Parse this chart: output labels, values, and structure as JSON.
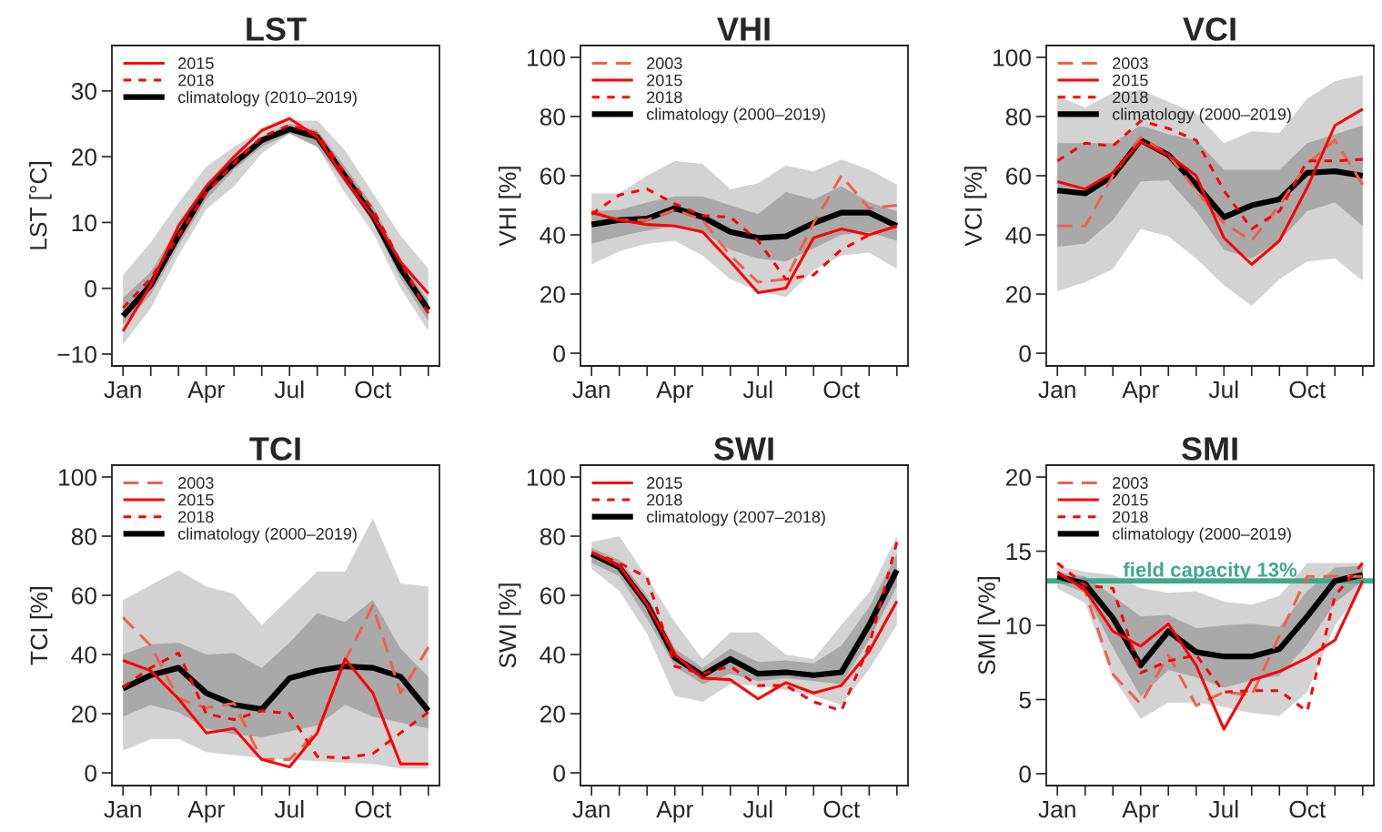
{
  "chart_data": [
    {
      "type": "line",
      "title": "LST",
      "ylabel": "LST [°C]",
      "categories": [
        "Jan",
        null,
        null,
        "Apr",
        null,
        null,
        "Jul",
        null,
        null,
        "Oct",
        null,
        null
      ],
      "ylim": [
        -11.8,
        36.9
      ],
      "yticks": [
        {
          "value": -10,
          "label": "−10"
        },
        0,
        10,
        20,
        30
      ],
      "legend": "top left",
      "grid": false,
      "series": [
        {
          "color": "#d3d3d3",
          "values": [
            null,
            null,
            null,
            null,
            null,
            null,
            null,
            null,
            null,
            null,
            null,
            null
          ],
          "lower": [
            -8.5,
            -3,
            5,
            12,
            15.5,
            20.5,
            23.5,
            21.5,
            14.5,
            8.5,
            0,
            -6.5
          ],
          "upper": [
            2,
            7,
            13,
            18.5,
            21.5,
            24,
            25.5,
            25.5,
            21,
            14.5,
            8,
            3
          ]
        },
        {
          "name": "2015",
          "color": "#ff0000",
          "line_style": "solid",
          "values": [
            -6.5,
            0.5,
            9.5,
            15.5,
            20,
            24,
            25.8,
            23,
            16.5,
            11,
            4,
            -0.8
          ]
        },
        {
          "name": "2018",
          "color": "#ff0000",
          "line_style": "dashed",
          "values": [
            -3,
            1.5,
            8,
            14.5,
            19,
            23,
            24.8,
            23.5,
            17.5,
            12,
            4,
            -3.8
          ]
        },
        {
          "name": "climatology (2010–2019)",
          "color": "#000000",
          "line_style": "solid",
          "values": [
            -4.2,
            0.5,
            8,
            15,
            19,
            22.5,
            24.2,
            23,
            17,
            11,
            3,
            -3.3
          ],
          "lower": [
            -5.5,
            -1,
            6.5,
            13.5,
            18,
            21.5,
            23.5,
            21.5,
            16,
            10,
            1.5,
            -5
          ],
          "upper": [
            -1.5,
            2.5,
            9.5,
            16,
            20,
            23,
            25,
            24,
            18.5,
            12.5,
            4.5,
            -2
          ]
        }
      ]
    },
    {
      "type": "line",
      "title": "VHI",
      "ylabel": "VHI [%]",
      "categories": [
        "Jan",
        null,
        null,
        "Apr",
        null,
        null,
        "Jul",
        null,
        null,
        "Oct",
        null,
        null
      ],
      "ylim": [
        -4.3,
        104
      ],
      "yticks": [
        0,
        20,
        40,
        60,
        80,
        100
      ],
      "legend": "top left",
      "grid": false,
      "series": [
        {
          "color": "#d3d3d3",
          "values": [
            null,
            null,
            null,
            null,
            null,
            null,
            null,
            null,
            null,
            null,
            null,
            null
          ],
          "lower": [
            30,
            34.5,
            37,
            38,
            33,
            25,
            21,
            19,
            28,
            33,
            34,
            28.5
          ],
          "upper": [
            54,
            54,
            60,
            65,
            64,
            55.5,
            57.5,
            63.5,
            61.5,
            65.5,
            62,
            57
          ]
        },
        {
          "name": "2003",
          "color": "#f0604a",
          "line_style": "longdash",
          "values": [
            48,
            45,
            45,
            48.5,
            45,
            33,
            24,
            25,
            44,
            60,
            49,
            50
          ]
        },
        {
          "name": "2015",
          "color": "#ff0000",
          "line_style": "solid",
          "values": [
            47.5,
            45,
            43.5,
            43,
            41,
            31,
            20.5,
            22,
            39,
            42,
            40,
            43
          ]
        },
        {
          "name": "2018",
          "color": "#ff0000",
          "line_style": "dashed",
          "values": [
            47,
            53.5,
            55.5,
            50.5,
            46.5,
            46,
            38,
            25,
            26.5,
            35,
            40,
            43
          ]
        },
        {
          "name": "climatology (2000–2019)",
          "color": "#000000",
          "line_style": "solid",
          "values": [
            43.5,
            45,
            45.5,
            49,
            46,
            41,
            39,
            39.5,
            44,
            47.5,
            47.5,
            43
          ],
          "lower": [
            37,
            39.5,
            41.5,
            43,
            41,
            35,
            32,
            31,
            35.5,
            40,
            41,
            38
          ],
          "upper": [
            48,
            48.5,
            51,
            53,
            53,
            50,
            47,
            54.5,
            52,
            56.5,
            51,
            48
          ]
        }
      ]
    },
    {
      "type": "line",
      "title": "VCI",
      "ylabel": "VCI [%]",
      "categories": [
        "Jan",
        null,
        null,
        "Apr",
        null,
        null,
        "Jul",
        null,
        null,
        "Oct",
        null,
        null
      ],
      "ylim": [
        -4.3,
        104
      ],
      "yticks": [
        0,
        20,
        40,
        60,
        80,
        100
      ],
      "legend": "top left",
      "grid": false,
      "series": [
        {
          "color": "#d3d3d3",
          "values": [
            null,
            null,
            null,
            null,
            null,
            null,
            null,
            null,
            null,
            null,
            null,
            null
          ],
          "lower": [
            21,
            24,
            28.5,
            42,
            39.5,
            32,
            23,
            16,
            25,
            31,
            32,
            24.5
          ],
          "upper": [
            87,
            83,
            88,
            89,
            85,
            81,
            71,
            75,
            74.5,
            86,
            92,
            94
          ]
        },
        {
          "name": "2003",
          "color": "#f0604a",
          "line_style": "longdash",
          "values": [
            43,
            43,
            60,
            73,
            67,
            55,
            44,
            38,
            50,
            64,
            72,
            57
          ]
        },
        {
          "name": "2015",
          "color": "#ff0000",
          "line_style": "solid",
          "values": [
            58,
            55.5,
            61,
            71.5,
            67,
            60,
            39,
            30,
            38,
            56,
            77,
            82.5
          ]
        },
        {
          "name": "2018",
          "color": "#ff0000",
          "line_style": "dashed",
          "values": [
            65,
            71,
            70,
            78.5,
            76,
            72,
            55,
            42,
            48,
            65,
            65,
            65.5
          ]
        },
        {
          "name": "climatology (2000–2019)",
          "color": "#000000",
          "line_style": "solid",
          "values": [
            55,
            54,
            60,
            72,
            67,
            57,
            46,
            50,
            52,
            61,
            61.5,
            60
          ],
          "lower": [
            36,
            37,
            45,
            58,
            58.5,
            48,
            35,
            32,
            38,
            48,
            51,
            43
          ],
          "upper": [
            71,
            71,
            71,
            77,
            74,
            72,
            62,
            62,
            62,
            71,
            74,
            77
          ]
        }
      ]
    },
    {
      "type": "line",
      "title": "TCI",
      "ylabel": "TCI [%]",
      "categories": [
        "Jan",
        null,
        null,
        "Apr",
        null,
        null,
        "Jul",
        null,
        null,
        "Oct",
        null,
        null
      ],
      "ylim": [
        -4.3,
        104
      ],
      "yticks": [
        0,
        20,
        40,
        60,
        80,
        100
      ],
      "legend": "top left",
      "grid": false,
      "series": [
        {
          "color": "#d3d3d3",
          "values": [
            null,
            null,
            null,
            null,
            null,
            null,
            null,
            null,
            null,
            null,
            null,
            null
          ],
          "lower": [
            7.5,
            11.5,
            11.5,
            7,
            6,
            5,
            4.5,
            4,
            3.5,
            3,
            1.5,
            1.5
          ],
          "upper": [
            58.5,
            63.5,
            68.5,
            63,
            60.5,
            50,
            59,
            68,
            68,
            86,
            64,
            63
          ]
        },
        {
          "name": "2003",
          "color": "#f0604a",
          "line_style": "longdash",
          "values": [
            52.5,
            43,
            25,
            22,
            23.5,
            4.5,
            4.5,
            14,
            38,
            56.5,
            27,
            42.5
          ]
        },
        {
          "name": "2015",
          "color": "#ff0000",
          "line_style": "solid",
          "values": [
            38,
            34.5,
            25,
            13.5,
            15,
            4.5,
            2,
            13.5,
            38.5,
            27,
            3,
            3
          ]
        },
        {
          "name": "2018",
          "color": "#ff0000",
          "line_style": "dashed",
          "values": [
            29,
            35.5,
            40.5,
            20,
            18,
            21,
            20,
            5.5,
            5,
            6.5,
            13.5,
            20.5
          ]
        },
        {
          "name": "climatology (2000–2019)",
          "color": "#000000",
          "line_style": "solid",
          "values": [
            28.5,
            33,
            35.5,
            27,
            23,
            21.5,
            32,
            34.5,
            36,
            35.5,
            32.5,
            21
          ],
          "lower": [
            19,
            23,
            20.5,
            15,
            13,
            12,
            14,
            16,
            23,
            19,
            17,
            15
          ],
          "upper": [
            40,
            43.5,
            44,
            40,
            40.5,
            35.5,
            44,
            54,
            51,
            58.5,
            42,
            32.5
          ]
        }
      ]
    },
    {
      "type": "line",
      "title": "SWI",
      "ylabel": "SWI [%]",
      "categories": [
        "Jan",
        null,
        null,
        "Apr",
        null,
        null,
        "Jul",
        null,
        null,
        "Oct",
        null,
        null
      ],
      "ylim": [
        -4.3,
        104
      ],
      "yticks": [
        0,
        20,
        40,
        60,
        80,
        100
      ],
      "legend": "top left",
      "grid": false,
      "series": [
        {
          "color": "#d3d3d3",
          "values": [
            null,
            null,
            null,
            null,
            null,
            null,
            null,
            null,
            null,
            null,
            null,
            null
          ],
          "lower": [
            69,
            61.5,
            47,
            26,
            24,
            30,
            29.5,
            28,
            26,
            23,
            35,
            50
          ],
          "upper": [
            78,
            80,
            66,
            51,
            38.5,
            47.5,
            47.5,
            40,
            38.5,
            50,
            61,
            80
          ]
        },
        {
          "name": "2015",
          "color": "#ff0000",
          "line_style": "solid",
          "values": [
            74.5,
            70,
            57,
            40,
            32,
            31.5,
            25,
            30.5,
            27,
            29.5,
            41,
            58
          ]
        },
        {
          "name": "2018",
          "color": "#ff0000",
          "line_style": "dashed",
          "values": [
            74.5,
            71,
            66,
            36,
            33.5,
            36,
            29.5,
            29.5,
            24,
            21,
            43,
            78
          ]
        },
        {
          "name": "climatology (2007–2018)",
          "color": "#000000",
          "line_style": "solid",
          "values": [
            74,
            69.5,
            57,
            39,
            33,
            38.5,
            33.5,
            34,
            33,
            34,
            50,
            68.5
          ],
          "lower": [
            71,
            66.5,
            52,
            36,
            30,
            33.5,
            31,
            32,
            31,
            30,
            45,
            63
          ],
          "upper": [
            76,
            72,
            60,
            42,
            35.5,
            42,
            37.5,
            38,
            37,
            43,
            56,
            74
          ]
        }
      ]
    },
    {
      "type": "line",
      "title": "SMI",
      "ylabel": "SMI [V%]",
      "categories": [
        "Jan",
        null,
        null,
        "Apr",
        null,
        null,
        "Jul",
        null,
        null,
        "Oct",
        null,
        null
      ],
      "ylim": [
        -0.8,
        20.8
      ],
      "yticks": [
        0,
        5,
        10,
        15,
        20
      ],
      "legend": "top left",
      "grid": false,
      "ref_lines": [
        {
          "axis": "y",
          "value": 13,
          "label": "field capacity 13%",
          "color": "#3fa98a",
          "line_style": "solid"
        }
      ],
      "series": [
        {
          "color": "#d3d3d3",
          "values": [
            null,
            null,
            null,
            null,
            null,
            null,
            null,
            null,
            null,
            null,
            null,
            null
          ],
          "lower": [
            12.5,
            11.5,
            6.5,
            3.7,
            4.8,
            4.8,
            4.5,
            4.1,
            3.9,
            5.5,
            10,
            12.5
          ],
          "upper": [
            14,
            13.6,
            13.4,
            12.5,
            12.2,
            12.3,
            11.6,
            11.4,
            12,
            14.2,
            14.2,
            14.2
          ]
        },
        {
          "name": "2003",
          "color": "#f0604a",
          "line_style": "longdash",
          "values": [
            13.6,
            12.3,
            6.7,
            4.7,
            8,
            4.6,
            5.5,
            5.3,
            9.3,
            13.3,
            13.3,
            13.3
          ]
        },
        {
          "name": "2015",
          "color": "#ff0000",
          "line_style": "solid",
          "values": [
            13.6,
            12.4,
            9.6,
            8.6,
            10.1,
            7.3,
            3,
            6.3,
            6.9,
            7.8,
            9,
            13
          ]
        },
        {
          "name": "2018",
          "color": "#ff0000",
          "line_style": "dashed",
          "values": [
            14.2,
            12.7,
            12.5,
            6.8,
            7.6,
            8,
            5.5,
            5.6,
            5.6,
            4.2,
            12,
            14.2
          ]
        },
        {
          "name": "climatology (2000–2019)",
          "color": "#000000",
          "line_style": "solid",
          "values": [
            13.3,
            12.8,
            10.5,
            7.3,
            9.6,
            8.2,
            7.9,
            7.9,
            8.4,
            10.6,
            13,
            13.4
          ],
          "lower": [
            12.9,
            12.2,
            8.5,
            5.2,
            7,
            6.5,
            5.8,
            6.3,
            6.6,
            8.7,
            11.5,
            13
          ],
          "upper": [
            13.6,
            13.3,
            12,
            10.6,
            10.7,
            9.8,
            10,
            10.1,
            9.9,
            12.3,
            13.9,
            14
          ]
        }
      ]
    }
  ]
}
